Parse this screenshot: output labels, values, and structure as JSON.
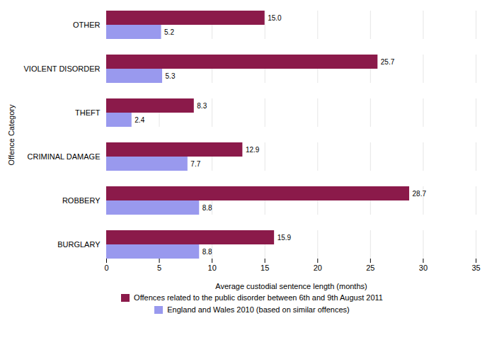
{
  "chart_data": {
    "type": "bar",
    "orientation": "horizontal",
    "categories": [
      "BURGLARY",
      "ROBBERY",
      "CRIMINAL DAMAGE",
      "THEFT",
      "VIOLENT DISORDER",
      "OTHER"
    ],
    "series": [
      {
        "name": "Offences related to the public disorder between 6th and 9th August 2011",
        "color": "#8B1A4A",
        "values": [
          15.9,
          28.7,
          12.9,
          8.3,
          25.7,
          15.0
        ],
        "value_labels": [
          "15.9",
          "28.7",
          "12.9",
          "8.3",
          "25.7",
          "15.0"
        ]
      },
      {
        "name": "England and Wales 2010 (based on similar offences)",
        "color": "#9999EE",
        "values": [
          8.8,
          8.8,
          7.7,
          2.4,
          5.3,
          5.2
        ],
        "value_labels": [
          "8.8",
          "8.8",
          "7.7",
          "2.4",
          "5.3",
          "5.2"
        ]
      }
    ],
    "xlabel": "Average custodial sentence length (months)",
    "ylabel": "Offence Category",
    "xlim": [
      0,
      35
    ],
    "xticks": [
      0,
      5,
      10,
      15,
      20,
      25,
      30,
      35
    ],
    "grid": true,
    "data_labels": true,
    "legend": "bottom"
  }
}
